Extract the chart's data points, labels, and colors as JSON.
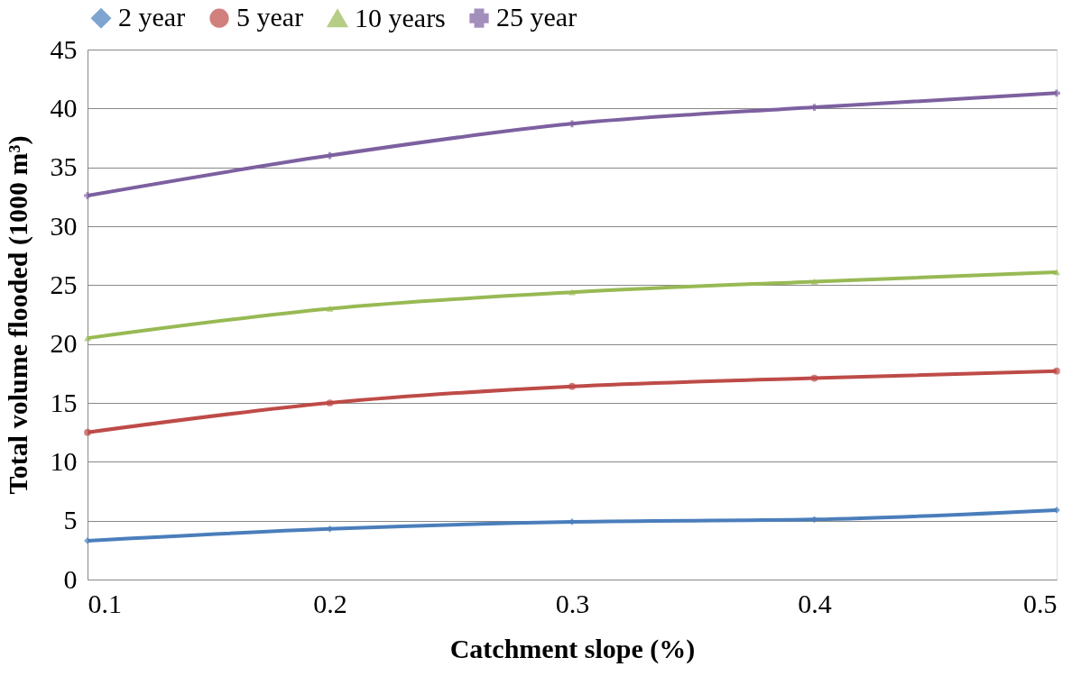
{
  "chart_data": {
    "type": "line",
    "xlabel": "Catchment slope (%)",
    "ylabel": "Total volume flooded      (1000 m³)",
    "x": [
      0.1,
      0.2,
      0.3,
      0.4,
      0.5
    ],
    "series": [
      {
        "name": "2 year",
        "color": "#4a7ebb",
        "marker": "diamond",
        "values": [
          3.3,
          4.3,
          4.9,
          5.1,
          5.9
        ]
      },
      {
        "name": "5 year",
        "color": "#be4b48",
        "marker": "circle",
        "values": [
          12.5,
          15.0,
          16.4,
          17.1,
          17.7
        ]
      },
      {
        "name": "10 years",
        "color": "#98b954",
        "marker": "triangle",
        "values": [
          20.5,
          23.0,
          24.4,
          25.3,
          26.1
        ]
      },
      {
        "name": "25 year",
        "color": "#7d60a0",
        "marker": "cross",
        "values": [
          32.6,
          36.0,
          38.7,
          40.1,
          41.3
        ]
      }
    ],
    "xlim": [
      0.1,
      0.5
    ],
    "xticks": [
      0.1,
      0.2,
      0.3,
      0.4,
      0.5
    ],
    "ylim": [
      0,
      45
    ],
    "yticks": [
      0,
      5,
      10,
      15,
      20,
      25,
      30,
      35,
      40,
      45
    ],
    "grid": "y",
    "legend": "top",
    "line_style": "solid"
  }
}
